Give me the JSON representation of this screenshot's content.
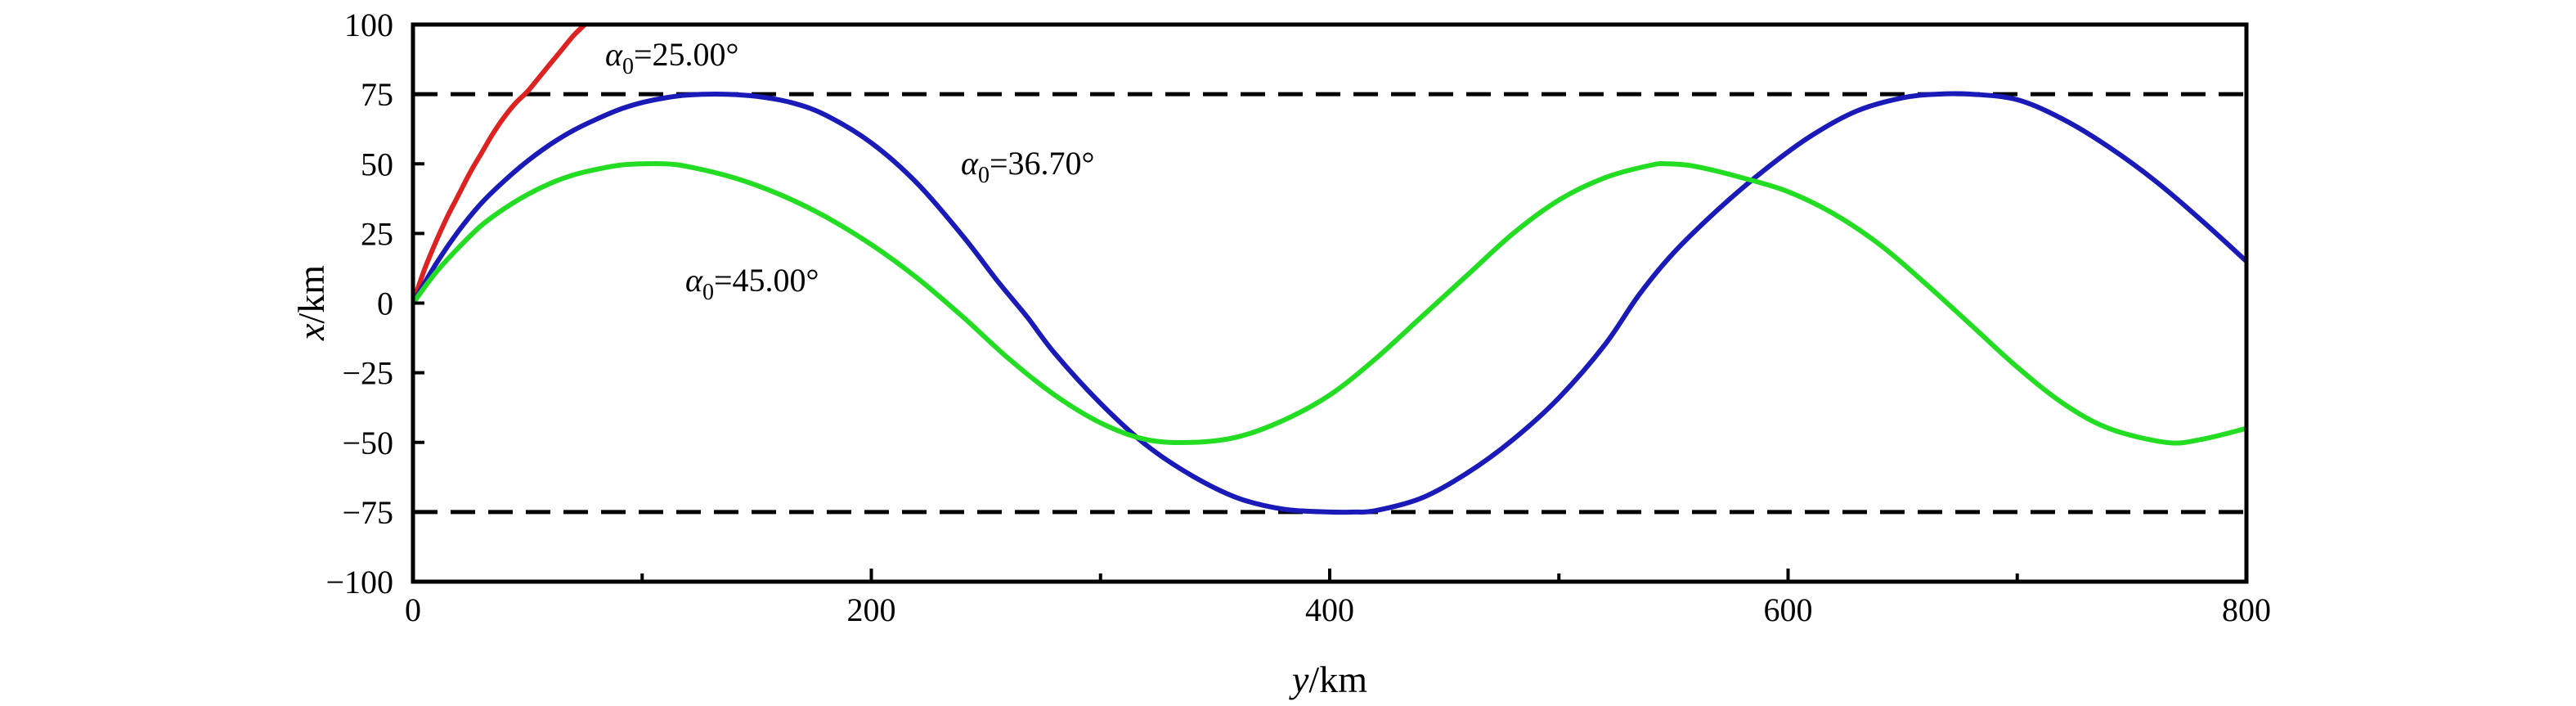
{
  "chart_data": {
    "type": "line",
    "xlabel": {
      "var": "y",
      "unit": "/km"
    },
    "ylabel": {
      "var": "x",
      "unit": "/km"
    },
    "xlim": [
      0,
      800
    ],
    "ylim": [
      -100,
      100
    ],
    "x_ticks": [
      0,
      200,
      400,
      600,
      800
    ],
    "x_minor_ticks": [
      100,
      300,
      500,
      700
    ],
    "y_ticks": [
      100,
      75,
      50,
      25,
      0,
      -25,
      -50,
      -75,
      -100
    ],
    "y_tick_labels": [
      "100",
      "75",
      "50",
      "25",
      "0",
      "−25",
      "−50",
      "−75",
      "−100"
    ],
    "grid": false,
    "reference_lines": [
      {
        "y": 75,
        "style": "dashed",
        "color": "#000000"
      },
      {
        "y": -75,
        "style": "dashed",
        "color": "#000000"
      }
    ],
    "series": [
      {
        "color": "#dd2222",
        "x": [
          0,
          5,
          10,
          15,
          20,
          25,
          30,
          35,
          40,
          45,
          50,
          55,
          60,
          65,
          70,
          75
        ],
        "y": [
          0,
          12,
          22,
          31,
          39,
          47,
          54,
          61,
          67,
          72,
          76,
          81,
          86,
          91,
          96,
          100
        ]
      },
      {
        "color": "#1a1ab8",
        "x": [
          0,
          10,
          20,
          30,
          40,
          50,
          60,
          70,
          80,
          90,
          100,
          110,
          120,
          135,
          150,
          165,
          180,
          200,
          220,
          240,
          255,
          268,
          280,
          300,
          320,
          340,
          360,
          380,
          400,
          410,
          420,
          440,
          460,
          480,
          500,
          520,
          535,
          550,
          570,
          590,
          610,
          630,
          650,
          665,
          680,
          700,
          720,
          740,
          760,
          780,
          800
        ],
        "y": [
          0,
          14,
          26,
          36,
          44,
          51,
          57,
          62,
          66,
          69.5,
          72,
          73.7,
          74.7,
          75,
          74.2,
          72,
          67.5,
          57.5,
          43,
          24,
          8,
          -5,
          -18,
          -36,
          -51,
          -62,
          -70,
          -74,
          -75,
          -75,
          -74.5,
          -70,
          -61,
          -49,
          -34,
          -15,
          3,
          18,
          34,
          48,
          60,
          69,
          73.7,
          75,
          75,
          73,
          66,
          56,
          44,
          30,
          15
        ]
      },
      {
        "color": "#22dd22",
        "x": [
          0,
          10,
          20,
          30,
          40,
          50,
          60,
          70,
          80,
          90,
          100,
          110,
          120,
          140,
          160,
          180,
          200,
          220,
          240,
          260,
          280,
          300,
          320,
          340,
          360,
          380,
          400,
          420,
          440,
          460,
          480,
          500,
          520,
          540,
          548,
          560,
          580,
          600,
          620,
          640,
          660,
          680,
          700,
          720,
          740,
          765,
          780,
          800
        ],
        "y": [
          0,
          11,
          20,
          28,
          34,
          39,
          43,
          46,
          48,
          49.5,
          50,
          50,
          49,
          45,
          39,
          31,
          21,
          9,
          -5,
          -20,
          -33,
          -43,
          -49,
          -50,
          -48,
          -42,
          -33,
          -20,
          -5,
          10,
          25,
          37,
          45,
          49.5,
          50,
          49,
          45,
          40,
          32,
          21,
          7,
          -8,
          -23,
          -36,
          -45,
          -50,
          -49,
          -45
        ]
      }
    ],
    "annotations": [
      {
        "sym": "α",
        "sub": "0",
        "text": "=25.00°",
        "series_index": 0
      },
      {
        "sym": "α",
        "sub": "0",
        "text": "=36.70°",
        "series_index": 1
      },
      {
        "sym": "α",
        "sub": "0",
        "text": "=45.00°",
        "series_index": 2
      }
    ]
  }
}
